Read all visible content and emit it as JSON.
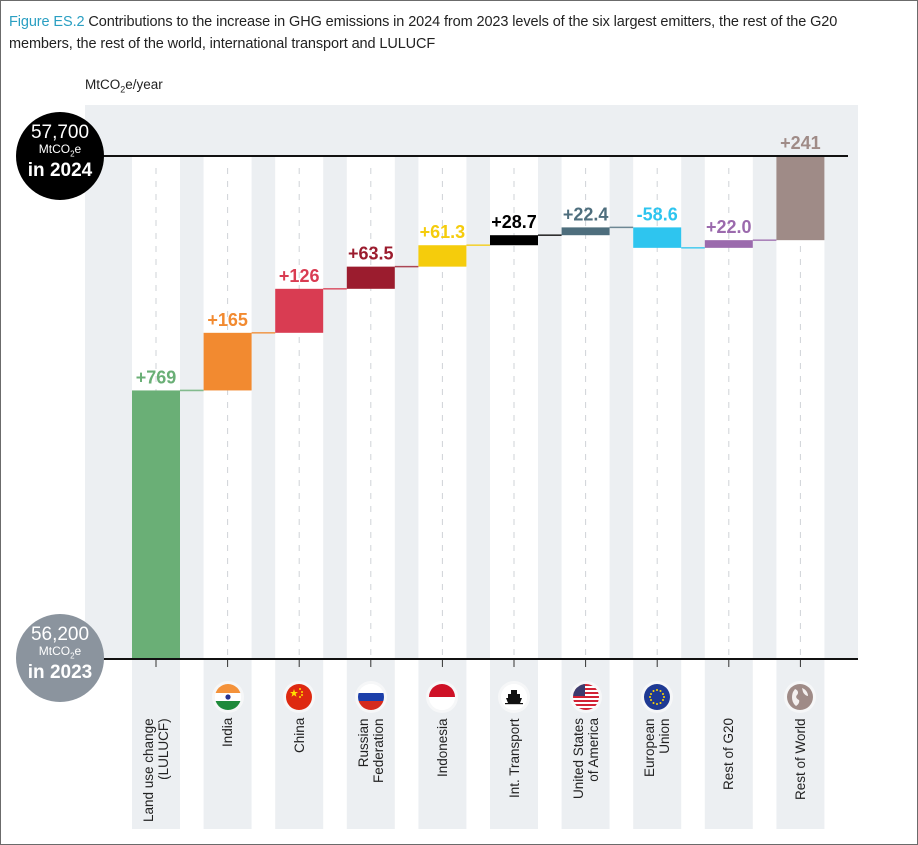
{
  "header": {
    "figure_label": "Figure ES.2",
    "title": "Contributions to the increase in GHG emissions in 2024 from 2023 levels of the six largest emitters, the rest of the G20 members, the rest of the world, international transport and LULUCF"
  },
  "unit_label": {
    "prefix": "MtCO",
    "sub": "2",
    "suffix": "e/year"
  },
  "badges": {
    "end": {
      "value": "57,700",
      "unit_prefix": "MtCO",
      "unit_sub": "2",
      "unit_suffix": "e",
      "year": "in 2024"
    },
    "start": {
      "value": "56,200",
      "unit_prefix": "MtCO",
      "unit_sub": "2",
      "unit_suffix": "e",
      "year": "in 2023"
    }
  },
  "chart_data": {
    "type": "waterfall",
    "title": "Contributions to the increase in GHG emissions in 2024 from 2023 levels",
    "ylabel": "MtCO2e/year",
    "start_value": 56200,
    "end_value": 57700,
    "categories": [
      "Land use change (LULUCF)",
      "India",
      "China",
      "Russian Federation",
      "Indonesia",
      "Int. Transport",
      "United States of America",
      "European Union",
      "Rest of G20",
      "Rest of World"
    ],
    "label_lines": [
      [
        "Land use change",
        "(LULUCF)"
      ],
      [
        "India"
      ],
      [
        "China"
      ],
      [
        "Russian",
        "Federation"
      ],
      [
        "Indonesia"
      ],
      [
        "Int. Transport"
      ],
      [
        "United States",
        "of America"
      ],
      [
        "European",
        "Union"
      ],
      [
        "Rest of G20"
      ],
      [
        "Rest of World"
      ]
    ],
    "values": [
      769,
      165,
      126,
      63.5,
      61.3,
      28.7,
      22.4,
      -58.6,
      22.0,
      241
    ],
    "value_labels": [
      "+769",
      "+165",
      "+126",
      "+63.5",
      "+61.3",
      "+28.7",
      "+22.4",
      "-58.6",
      "+22.0",
      "+241"
    ],
    "colors": [
      "#6aaf76",
      "#f28a30",
      "#d93c52",
      "#9b1c2e",
      "#f5cc0c",
      "#000000",
      "#4e6e7d",
      "#2ec5ef",
      "#9b6aad",
      "#9f8b87"
    ],
    "icons": [
      "none",
      "india-flag-icon",
      "china-flag-icon",
      "russia-flag-icon",
      "indonesia-flag-icon",
      "ship-icon",
      "usa-flag-icon",
      "eu-flag-icon",
      "none",
      "globe-icon"
    ],
    "grid": false
  }
}
